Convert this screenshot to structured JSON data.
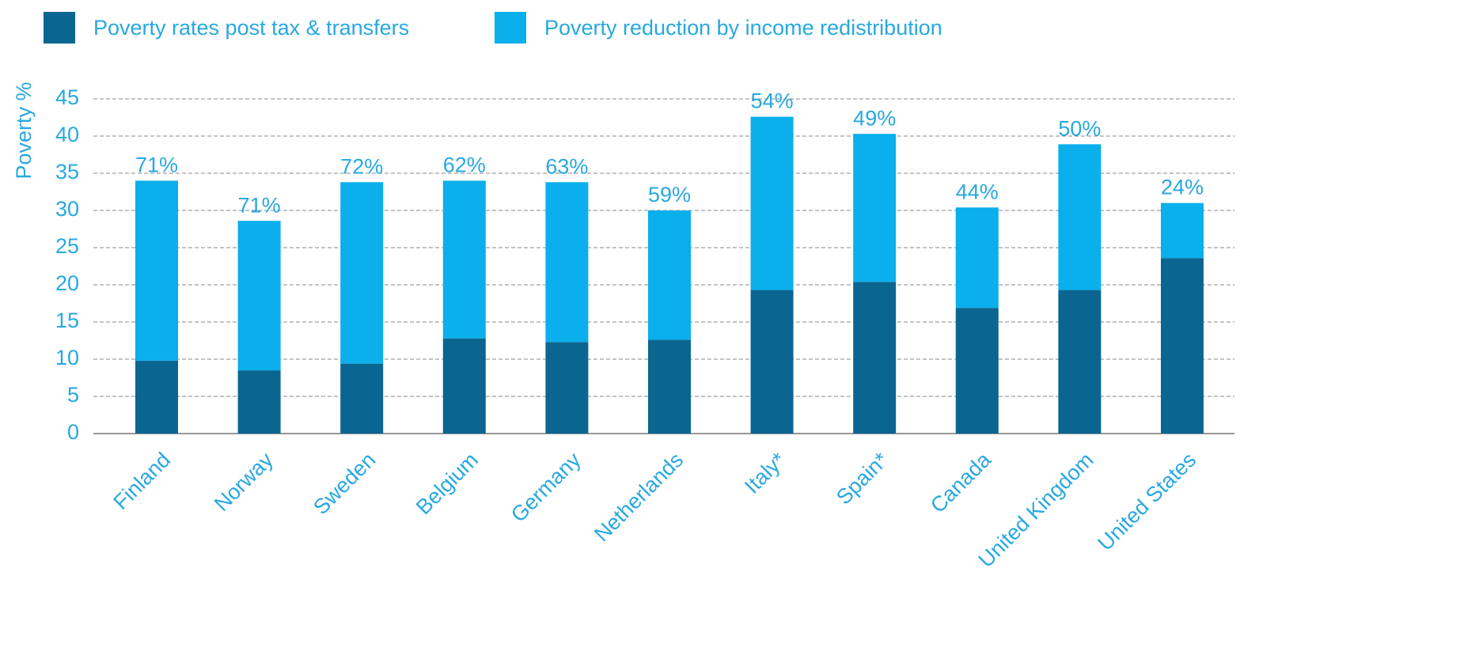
{
  "chart_data": {
    "type": "stacked_bar",
    "ylabel": "Poverty %",
    "categories": [
      "Finland",
      "Norway",
      "Sweden",
      "Belgium",
      "Germany",
      "Netherlands",
      "Italy*",
      "Spain*",
      "Canada",
      "United Kingdom",
      "United States"
    ],
    "series": [
      {
        "name": "Poverty rates post tax & transfers",
        "color": "#0a6690",
        "values": [
          9.8,
          8.5,
          9.4,
          12.8,
          12.3,
          12.6,
          19.3,
          20.4,
          16.9,
          19.3,
          23.6
        ]
      },
      {
        "name": "Poverty reduction by income redistribution",
        "color": "#0aafec",
        "values": [
          24.2,
          20.1,
          24.4,
          21.2,
          21.5,
          17.4,
          23.3,
          19.9,
          13.5,
          19.6,
          7.4
        ]
      }
    ],
    "annotations": [
      "71%",
      "71%",
      "72%",
      "62%",
      "63%",
      "59%",
      "54%",
      "49%",
      "44%",
      "50%",
      "24%"
    ],
    "ylim": [
      0,
      45
    ],
    "yticks": [
      0,
      5,
      10,
      15,
      20,
      25,
      30,
      35,
      40,
      45
    ],
    "grid": true
  }
}
